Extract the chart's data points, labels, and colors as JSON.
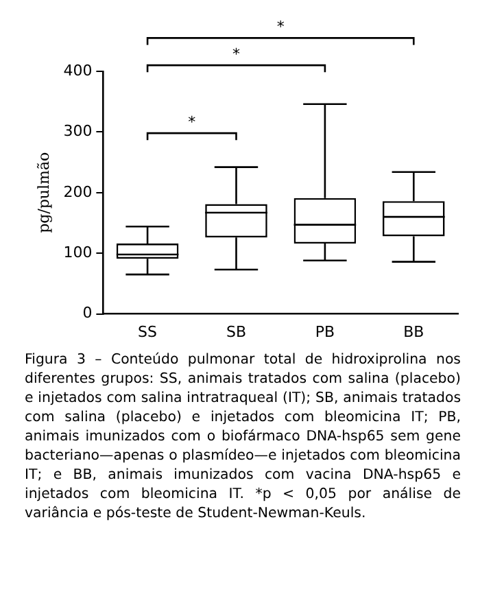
{
  "chart_data": {
    "type": "box",
    "categories": [
      "SS",
      "SB",
      "PB",
      "BB"
    ],
    "ylabel": "pg/pulmão",
    "ylim": [
      0,
      400
    ],
    "yticks": [
      0,
      100,
      200,
      300,
      400
    ],
    "grid": false,
    "legend": false,
    "color": "#000000",
    "boxes": [
      {
        "low": 65,
        "q1": 91,
        "median": 98,
        "q3": 116,
        "high": 144
      },
      {
        "low": 73,
        "q1": 126,
        "median": 167,
        "q3": 181,
        "high": 242
      },
      {
        "low": 88,
        "q1": 116,
        "median": 147,
        "q3": 191,
        "high": 346
      },
      {
        "low": 86,
        "q1": 128,
        "median": 160,
        "q3": 186,
        "high": 234
      }
    ],
    "annotations": [
      "*",
      "*",
      "*",
      "Figura 3 – Conteúdo pulmonar total de hidroxiprolina nos diferentes grupos: SS, animais tratados com salina (placebo) e injetados com salina intratraqueal (IT); SB, animais tratados com salina (placebo) e injetados com bleomicina IT; PB, animais imunizados com o biofármaco DNA-hsp65 sem gene bacteriano—apenas o plasmídeo—e injetados com bleomicina IT; e BB, animais imunizados com vacina DNA-hsp65 e injetados com bleomicina IT. *p < 0,05 por análise de variância e pós-teste de Student-Newman-Keuls."
    ]
  }
}
